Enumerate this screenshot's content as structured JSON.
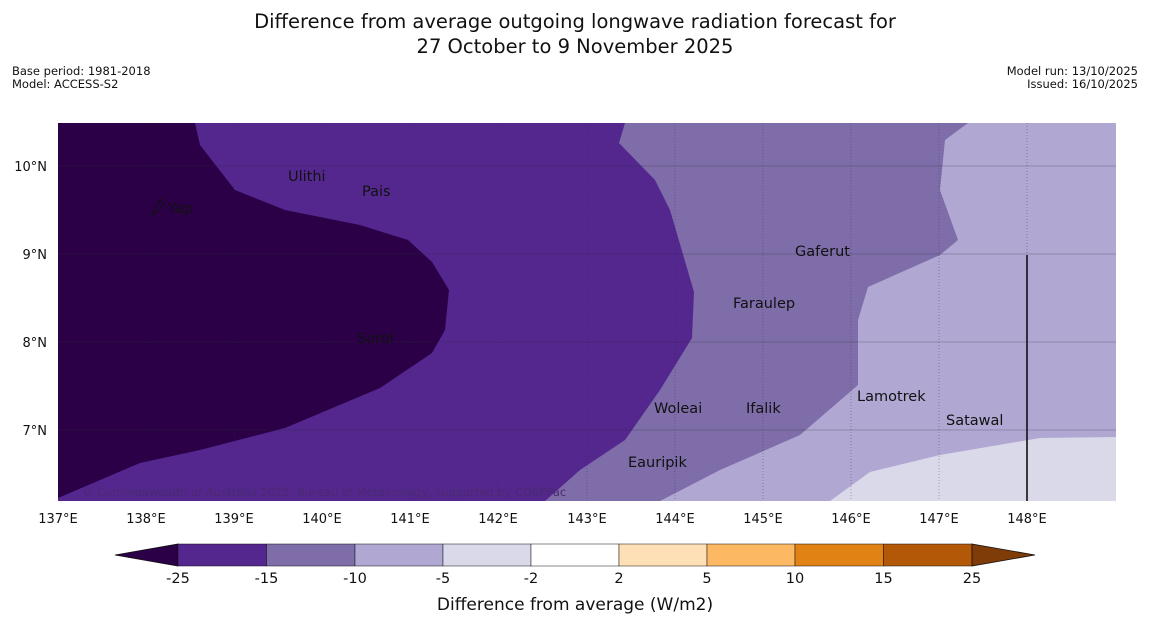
{
  "title": {
    "line1": "Difference from average outgoing longwave radiation forecast for",
    "line2": "27 October to 9 November 2025"
  },
  "meta": {
    "base_period": "Base period: 1981-2018",
    "model": "Model: ACCESS-S2",
    "model_run": "Model run: 13/10/2025",
    "issued": "Issued: 16/10/2025"
  },
  "axes": {
    "x_ticks": [
      "137°E",
      "138°E",
      "139°E",
      "140°E",
      "141°E",
      "142°E",
      "143°E",
      "144°E",
      "145°E",
      "146°E",
      "147°E",
      "148°E"
    ],
    "y_ticks": [
      "10°N",
      "9°N",
      "8°N",
      "7°N"
    ]
  },
  "places": [
    "Yap",
    "Ulithi",
    "Pais",
    "Gaferut",
    "Faraulep",
    "Sorol",
    "Lamotrek",
    "Woleai",
    "Ifalik",
    "Satawal",
    "Eauripik"
  ],
  "copyright": "© Commonwealth of Australia 2025, Bureau of Meteorology, supported by COSPPac",
  "colorbar": {
    "title": "Difference from average (W/m2)",
    "labels": [
      "-25",
      "-15",
      "-10",
      "-5",
      "-2",
      "2",
      "5",
      "10",
      "15",
      "25"
    ],
    "colors": [
      "#2b0047",
      "#54278f",
      "#7e6da9",
      "#b0a8d2",
      "#d9d9ea",
      "#ffffff",
      "#fee0b6",
      "#fdb863",
      "#e08214",
      "#b35806",
      "#7f3b08"
    ]
  },
  "map_colors": {
    "lt_neg25": "#2b0047",
    "neg25_neg15": "#54278f",
    "neg15_neg10": "#7e6da9",
    "neg10_neg5": "#b0a8d2",
    "neg5_neg2": "#d9d9ea"
  }
}
